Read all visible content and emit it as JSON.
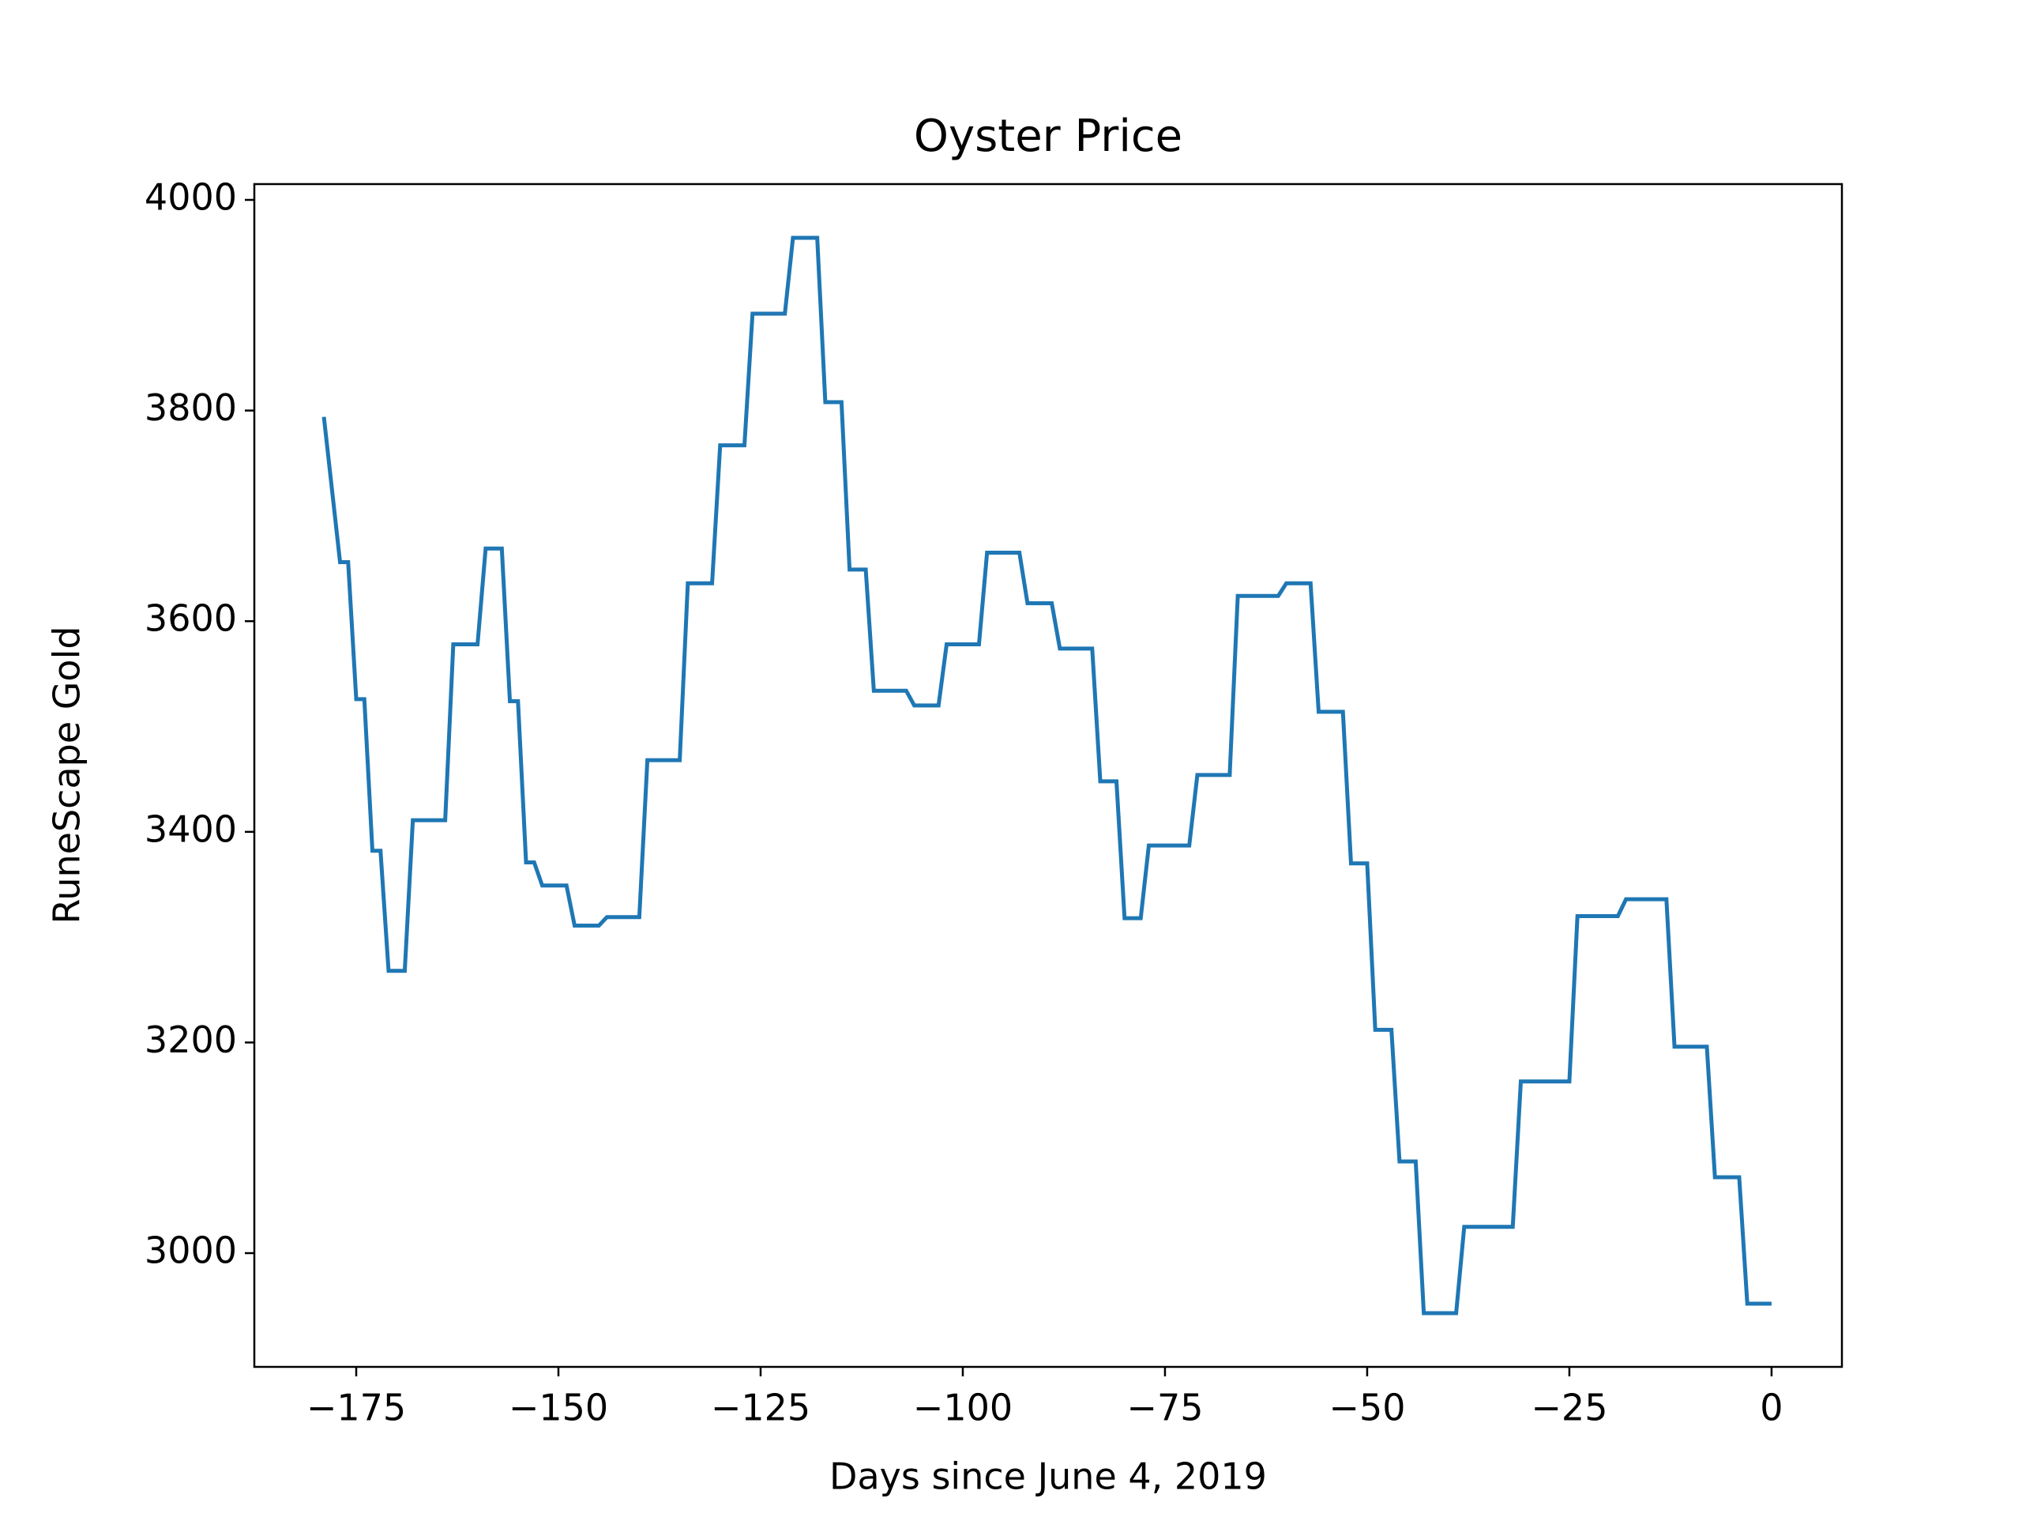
{
  "chart_data": {
    "type": "line",
    "title": "Oyster Price",
    "xlabel": "Days since June 4, 2019",
    "ylabel": "RuneScape Gold",
    "color": "#1f77b4",
    "x": [
      -179,
      -177,
      -176,
      -175,
      -174,
      -173,
      -172,
      -171,
      -169,
      -168,
      -164,
      -163,
      -160,
      -159,
      -157,
      -156,
      -155,
      -154,
      -153,
      -152,
      -149,
      -148,
      -145,
      -144,
      -140,
      -139,
      -135,
      -134,
      -131,
      -130,
      -127,
      -126,
      -122,
      -121,
      -118,
      -117,
      -115,
      -114,
      -112,
      -111,
      -107,
      -106,
      -103,
      -102,
      -98,
      -97,
      -93,
      -92,
      -89,
      -88,
      -84,
      -83,
      -81,
      -80,
      -78,
      -77,
      -72,
      -71,
      -67,
      -66,
      -61,
      -60,
      -57,
      -56,
      -53,
      -52,
      -50,
      -49,
      -47,
      -46,
      -44,
      -43,
      -39,
      -38,
      -32,
      -31,
      -25,
      -24,
      -19,
      -18,
      -13,
      -12,
      -8,
      -7,
      -4,
      -3,
      0
    ],
    "values": [
      3794,
      3656,
      3656,
      3526,
      3526,
      3382,
      3382,
      3268,
      3268,
      3411,
      3411,
      3578,
      3578,
      3669,
      3669,
      3524,
      3524,
      3371,
      3371,
      3349,
      3349,
      3311,
      3311,
      3319,
      3319,
      3468,
      3468,
      3636,
      3636,
      3767,
      3767,
      3892,
      3892,
      3964,
      3964,
      3808,
      3808,
      3649,
      3649,
      3534,
      3534,
      3520,
      3520,
      3578,
      3578,
      3665,
      3665,
      3617,
      3617,
      3574,
      3574,
      3448,
      3448,
      3318,
      3318,
      3387,
      3387,
      3454,
      3454,
      3624,
      3624,
      3636,
      3636,
      3514,
      3514,
      3370,
      3370,
      3212,
      3212,
      3087,
      3087,
      2943,
      2943,
      3025,
      3025,
      3163,
      3163,
      3320,
      3320,
      3336,
      3336,
      3196,
      3196,
      3072,
      3072,
      2952,
      2952
    ],
    "xlim": [
      -187.6,
      8.7
    ],
    "ylim": [
      2892,
      4015
    ],
    "xticks": [
      {
        "value": -175,
        "label": "−175"
      },
      {
        "value": -150,
        "label": "−150"
      },
      {
        "value": -125,
        "label": "−125"
      },
      {
        "value": -100,
        "label": "−100"
      },
      {
        "value": -75,
        "label": "−75"
      },
      {
        "value": -50,
        "label": "−50"
      },
      {
        "value": -25,
        "label": "−25"
      },
      0
    ],
    "yticks": [
      3000,
      3200,
      3400,
      3600,
      3800,
      4000
    ]
  }
}
